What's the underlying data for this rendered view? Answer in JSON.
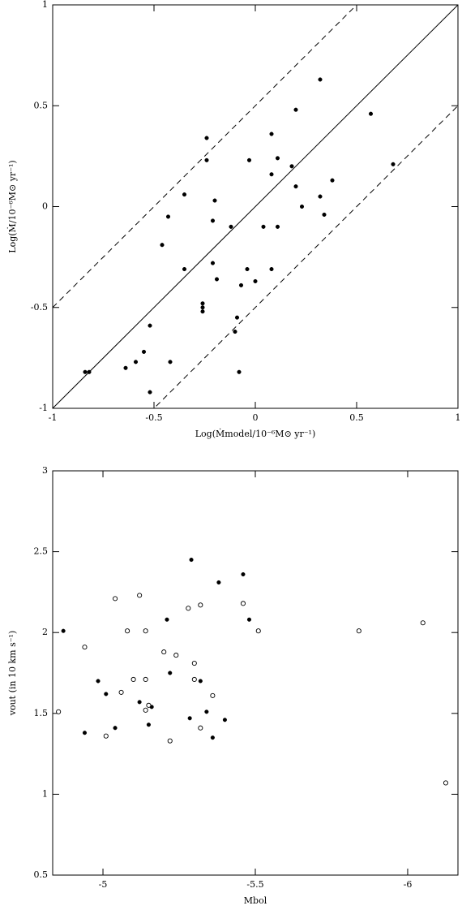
{
  "chart_data": [
    {
      "type": "scatter",
      "xlabel": "Log(Ṁmodel/10⁻⁶M⊙ yr⁻¹)",
      "ylabel": "Log(Ṁ/10⁻⁶M⊙ yr⁻¹)",
      "xlim": [
        -1,
        1
      ],
      "ylim": [
        -1,
        1
      ],
      "xticks": [
        -1,
        -0.5,
        0,
        0.5,
        1
      ],
      "yticks": [
        -1,
        -0.5,
        0,
        0.5,
        1
      ],
      "color": "#000000",
      "marker": "filled",
      "reference_lines": [
        {
          "slope": 1,
          "intercept": 0,
          "style": "solid"
        },
        {
          "slope": 1,
          "intercept": 0.5,
          "style": "dashed"
        },
        {
          "slope": 1,
          "intercept": -0.5,
          "style": "dashed"
        }
      ],
      "x": [
        -0.84,
        -0.82,
        -0.64,
        -0.59,
        -0.55,
        -0.52,
        -0.52,
        -0.42,
        -0.46,
        -0.43,
        -0.35,
        -0.35,
        -0.24,
        -0.24,
        -0.2,
        -0.21,
        -0.21,
        -0.19,
        -0.26,
        -0.26,
        -0.26,
        -0.12,
        -0.09,
        -0.1,
        -0.08,
        -0.07,
        -0.04,
        -0.03,
        0,
        0.04,
        0.08,
        0.08,
        0.08,
        0.11,
        0.11,
        0.18,
        0.2,
        0.2,
        0.23,
        0.32,
        0.32,
        0.34,
        0.38,
        0.57,
        0.68
      ],
      "values": [
        -0.82,
        -0.82,
        -0.8,
        -0.77,
        -0.72,
        -0.92,
        -0.59,
        -0.77,
        -0.19,
        -0.05,
        0.06,
        -0.31,
        0.34,
        0.23,
        0.03,
        -0.07,
        -0.28,
        -0.36,
        -0.48,
        -0.5,
        -0.52,
        -0.1,
        -0.55,
        -0.62,
        -0.82,
        -0.39,
        -0.31,
        0.23,
        -0.37,
        -0.1,
        0.36,
        0.16,
        -0.31,
        0.24,
        -0.1,
        0.2,
        0.48,
        0.1,
        0,
        0.63,
        0.05,
        -0.04,
        0.13,
        0.46,
        0.21
      ]
    },
    {
      "type": "scatter",
      "xlabel": "Mbol",
      "ylabel": "vout (in 10 km s⁻¹)",
      "xlim": [
        -4.835,
        -6.165
      ],
      "ylim": [
        0.5,
        3
      ],
      "xticks": [
        -5,
        -5.5,
        -6
      ],
      "yticks": [
        0.5,
        1,
        1.5,
        2,
        2.5,
        3
      ],
      "series": [
        {
          "color": "#000000",
          "marker": "filled",
          "x": [
            -4.87,
            -4.94,
            -4.984,
            -5.01,
            -5.04,
            -5.12,
            -5.15,
            -5.16,
            -5.21,
            -5.22,
            -5.285,
            -5.29,
            -5.32,
            -5.34,
            -5.36,
            -5.38,
            -5.4,
            -5.46,
            -5.48
          ],
          "values": [
            2.01,
            1.38,
            1.7,
            1.62,
            1.41,
            1.57,
            1.43,
            1.54,
            2.08,
            1.75,
            1.47,
            2.45,
            1.7,
            1.51,
            1.35,
            2.31,
            1.46,
            2.36,
            2.08
          ]
        },
        {
          "color": "#000000",
          "marker": "open",
          "x": [
            -4.854,
            -4.94,
            -5.01,
            -5.04,
            -5.06,
            -5.08,
            -5.1,
            -5.12,
            -5.14,
            -5.14,
            -5.14,
            -5.15,
            -5.2,
            -5.22,
            -5.24,
            -5.28,
            -5.3,
            -5.3,
            -5.32,
            -5.32,
            -5.36,
            -5.46,
            -5.51,
            -5.84,
            -6.05,
            -6.125
          ],
          "values": [
            1.51,
            1.91,
            1.36,
            2.21,
            1.63,
            2.01,
            1.71,
            2.23,
            1.71,
            1.52,
            2.01,
            1.55,
            1.88,
            1.33,
            1.86,
            2.15,
            1.71,
            1.81,
            2.17,
            1.41,
            1.61,
            2.18,
            2.01,
            2.01,
            2.06,
            1.07
          ]
        }
      ]
    }
  ]
}
